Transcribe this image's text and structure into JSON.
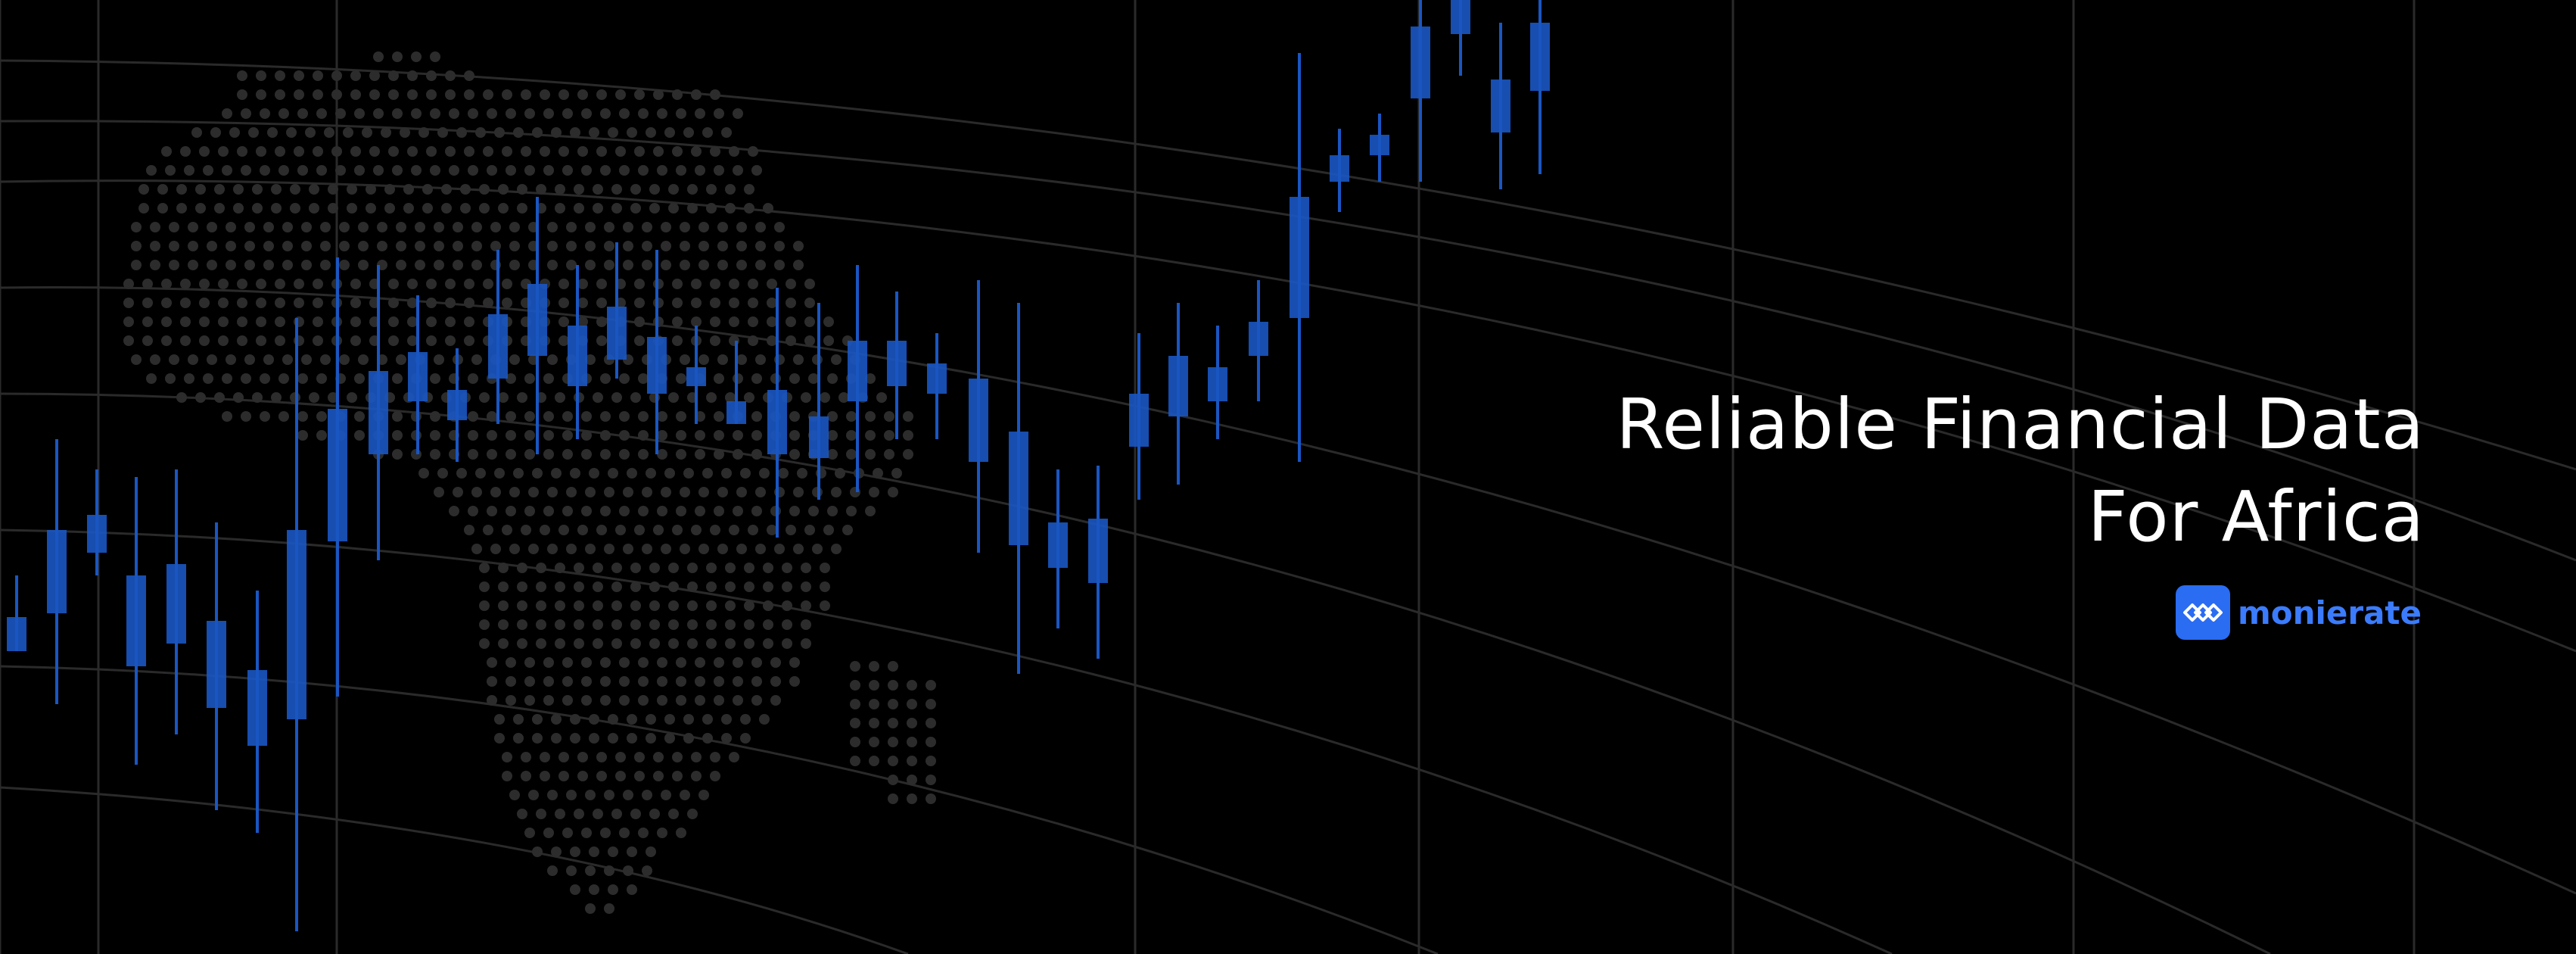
{
  "headline": {
    "line1": "Reliable Financial Data",
    "line2": "For Africa"
  },
  "brand": {
    "name": "monierate",
    "icon": "monierate-logo-icon",
    "accent_color": "#2a6cf2",
    "text_color": "#3b7cff"
  },
  "background": {
    "color": "#000000",
    "candle_color": "#1a56c2",
    "grid_color": "#2a2a2a",
    "map_dot_color": "#2c2c2c"
  }
}
